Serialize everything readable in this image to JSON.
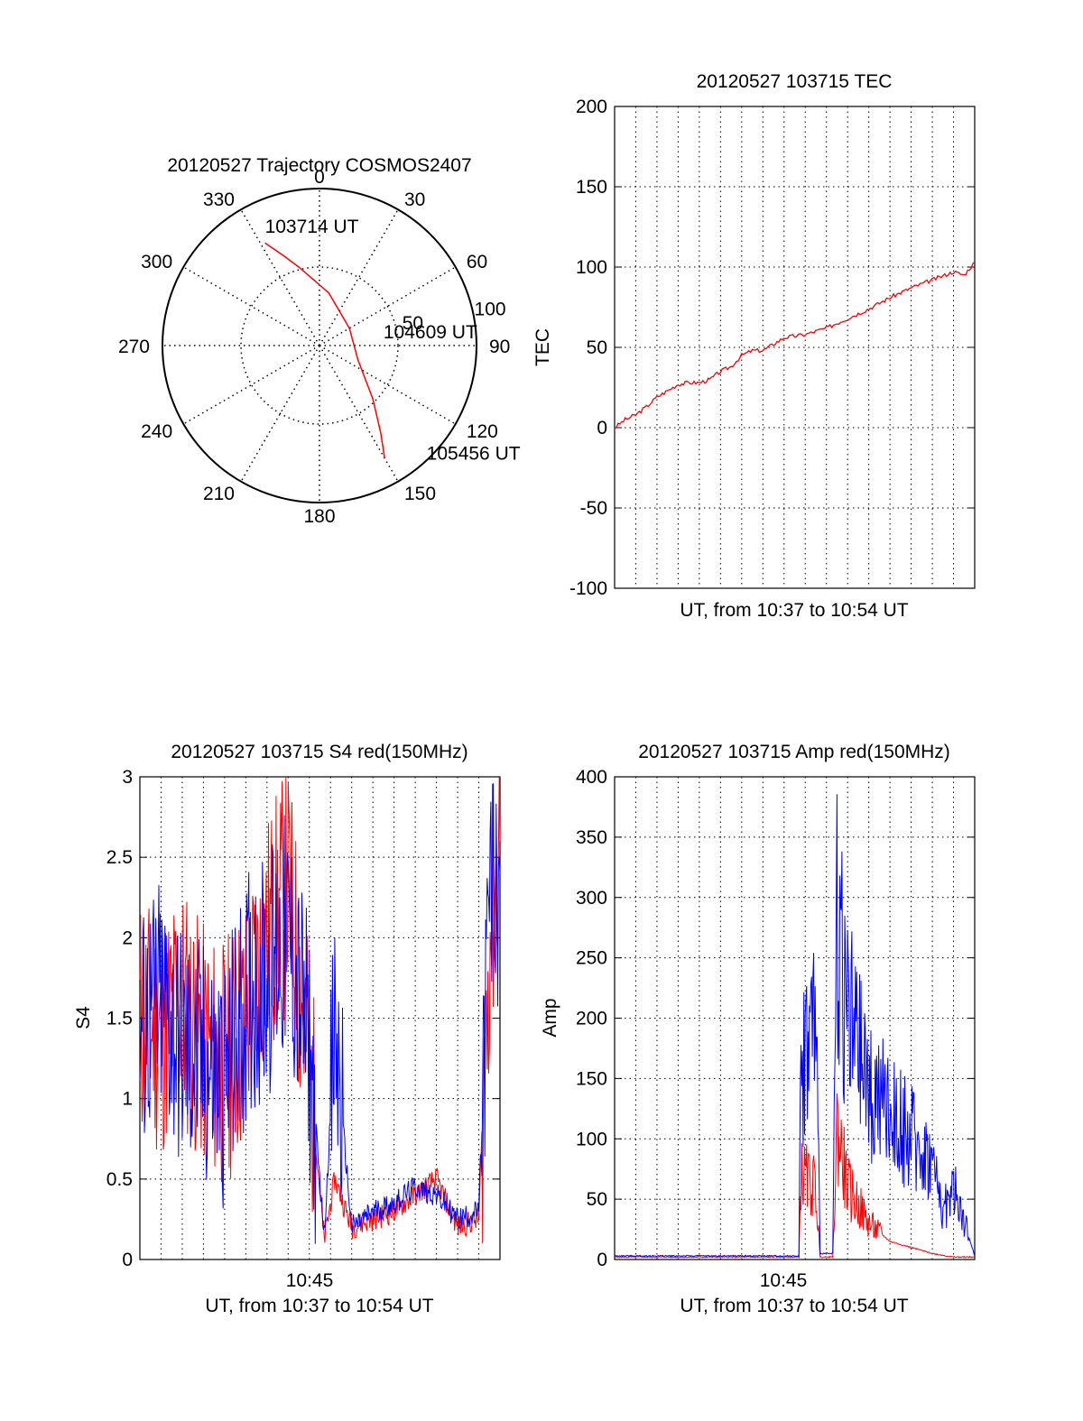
{
  "chart_data": [
    {
      "type": "polar",
      "title": "20120527 Trajectory COSMOS2407",
      "angle_labels": [
        "0",
        "30",
        "60",
        "90",
        "120",
        "150",
        "180",
        "210",
        "240",
        "270",
        "300",
        "330"
      ],
      "radius_ring_labels": [
        "50",
        "100"
      ],
      "radius_range": [
        0,
        100
      ],
      "grid": true,
      "series": [
        {
          "color": "#ff0000",
          "points_az_r": [
            [
              332,
              74
            ],
            [
              338,
              62
            ],
            [
              345,
              52
            ],
            [
              355,
              42
            ],
            [
              10,
              34
            ],
            [
              60,
              22
            ],
            [
              110,
              26
            ],
            [
              135,
              48
            ],
            [
              145,
              68
            ],
            [
              150,
              83
            ]
          ]
        }
      ],
      "annotations": [
        {
          "text": "103714 UT",
          "az": 337,
          "r": 83
        },
        {
          "text": "104609 UT",
          "az": 78,
          "r": 44
        },
        {
          "text": "105456 UT",
          "az": 134,
          "r": 98
        }
      ]
    },
    {
      "type": "line",
      "title": "20120527 103715 TEC",
      "xlabel": "UT, from 10:37 to 10:54 UT",
      "ylabel": "TEC",
      "xlim": [
        0,
        17
      ],
      "ylim": [
        -100,
        200
      ],
      "yticks": [
        -100,
        -50,
        0,
        50,
        100,
        150,
        200
      ],
      "grid": true,
      "series": [
        {
          "color": "#ff0000",
          "x": [
            0,
            0.5,
            1,
            1.5,
            2,
            2.5,
            3,
            3.5,
            4,
            4.5,
            5,
            5.5,
            6,
            6.5,
            7,
            7.5,
            8,
            8.5,
            9,
            10,
            11,
            12,
            13,
            14,
            15,
            16,
            16.5,
            17
          ],
          "y": [
            0,
            5,
            8,
            13,
            19,
            23,
            27,
            28,
            28,
            30,
            35,
            38,
            45,
            48,
            48,
            52,
            56,
            57,
            58,
            62,
            68,
            74,
            81,
            87,
            92,
            97,
            95,
            103
          ]
        }
      ]
    },
    {
      "type": "line",
      "title": "20120527 103715 S4 red(150MHz)",
      "xlabel": "UT, from 10:37 to 10:54 UT",
      "ylabel": "S4",
      "xlim": [
        0,
        17
      ],
      "ylim": [
        0,
        3
      ],
      "yticks": [
        0,
        0.5,
        1,
        1.5,
        2,
        2.5,
        3
      ],
      "xtick_label": "10:45",
      "grid": true,
      "series": [
        {
          "color": "#ff0000",
          "x": [
            0,
            1,
            2,
            3,
            4,
            5,
            6,
            7,
            8,
            8.7,
            9.2,
            10,
            11,
            12,
            13,
            14,
            15,
            16,
            16.5,
            17
          ],
          "y": [
            1.5,
            1.4,
            1.6,
            1.3,
            1.2,
            1.5,
            2.0,
            2.3,
            1.2,
            0.12,
            0.5,
            0.2,
            0.25,
            0.3,
            0.4,
            0.5,
            0.2,
            0.25,
            2.0,
            2.6
          ]
        },
        {
          "color": "#0000ff",
          "x": [
            0,
            1,
            2,
            3,
            4,
            5,
            6,
            7,
            8,
            8.7,
            9.2,
            10,
            11,
            12,
            13,
            14,
            15,
            16,
            16.5,
            17
          ],
          "y": [
            1.4,
            1.6,
            1.3,
            1.2,
            1.1,
            1.6,
            1.8,
            2.0,
            1.3,
            0.15,
            1.4,
            0.2,
            0.3,
            0.35,
            0.45,
            0.4,
            0.25,
            0.3,
            2.2,
            2.4
          ]
        }
      ]
    },
    {
      "type": "line",
      "title": "20120527 103715 Amp red(150MHz)",
      "xlabel": "UT, from 10:37 to 10:54 UT",
      "ylabel": "Amp",
      "xlim": [
        0,
        17
      ],
      "ylim": [
        0,
        400
      ],
      "yticks": [
        0,
        50,
        100,
        150,
        200,
        250,
        300,
        350,
        400
      ],
      "xtick_label": "10:45",
      "grid": true,
      "series": [
        {
          "color": "#ff0000",
          "x": [
            0,
            4,
            8.7,
            8.8,
            9.5,
            9.7,
            10.3,
            10.5,
            11,
            12,
            13,
            14,
            15,
            16,
            17
          ],
          "y": [
            2,
            2,
            2,
            70,
            60,
            2,
            2,
            110,
            60,
            30,
            15,
            10,
            5,
            2,
            2
          ]
        },
        {
          "color": "#0000ff",
          "x": [
            0,
            4,
            8.7,
            8.8,
            9.5,
            9.7,
            10.3,
            10.5,
            11,
            12,
            13,
            14,
            15,
            15.5,
            16,
            17
          ],
          "y": [
            3,
            3,
            3,
            160,
            200,
            5,
            5,
            300,
            200,
            140,
            120,
            100,
            80,
            40,
            60,
            3
          ]
        }
      ]
    }
  ]
}
